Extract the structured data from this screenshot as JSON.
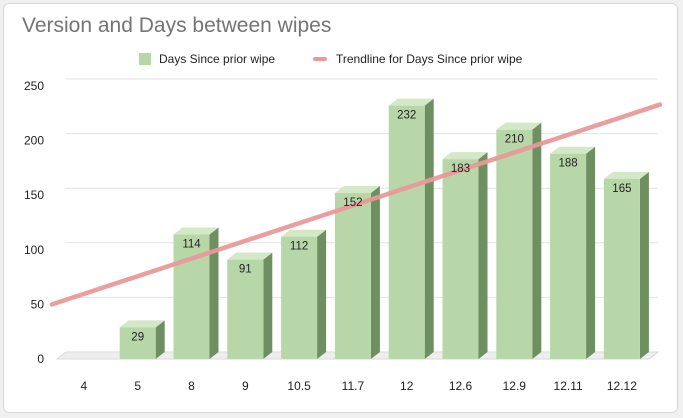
{
  "chart_data": {
    "type": "bar",
    "title": "Version and Days between wipes",
    "xlabel": "",
    "ylabel": "",
    "categories": [
      "4",
      "5",
      "8",
      "9",
      "10.5",
      "11.7",
      "12",
      "12.6",
      "12.9",
      "12.11",
      "12.12"
    ],
    "series": [
      {
        "name": "Days Since prior wipe",
        "values": [
          null,
          29,
          114,
          91,
          112,
          152,
          232,
          183,
          210,
          188,
          165
        ]
      }
    ],
    "trendline": {
      "name": "Trendline for Days Since prior wipe",
      "start": 50,
      "end": 233
    },
    "ylim": [
      0,
      250
    ],
    "yticks": [
      0,
      50,
      100,
      150,
      200,
      250
    ],
    "grid": true,
    "legend_position": "top",
    "bar_style": "3d",
    "colors": {
      "bar_front": "#b7d7a8",
      "bar_side": "#6e8f60",
      "bar_top": "#d3e8c7",
      "trendline": "#ea9999",
      "title": "#757575"
    }
  }
}
